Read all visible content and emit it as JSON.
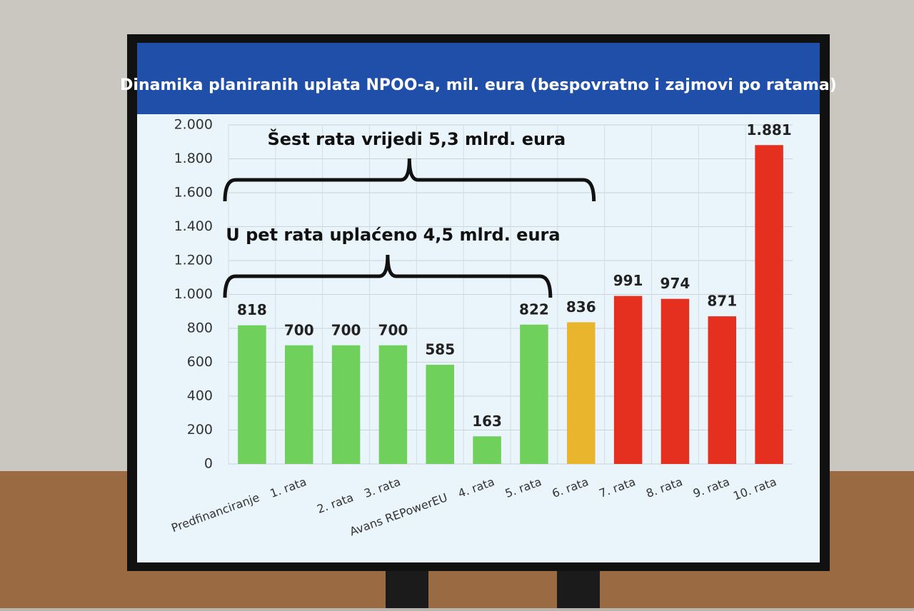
{
  "chart_data": {
    "type": "bar",
    "title": "Dinamika planiranih uplata NPOO-a, mil. eura (bespovratno i zajmovi po ratama)",
    "categories": [
      "Predfinanciranje",
      "1. rata",
      "2. rata",
      "3. rata",
      "Avans REPowerEU",
      "4. rata",
      "5. rata",
      "6. rata",
      "7. rata",
      "8. rata",
      "9. rata",
      "10. rata"
    ],
    "values": [
      818,
      700,
      700,
      700,
      585,
      163,
      822,
      836,
      991,
      974,
      871,
      1881
    ],
    "value_labels": [
      "818",
      "700",
      "700",
      "700",
      "585",
      "163",
      "822",
      "836",
      "991",
      "974",
      "871",
      "1.881"
    ],
    "colors": [
      "#6fd05c",
      "#6fd05c",
      "#6fd05c",
      "#6fd05c",
      "#6fd05c",
      "#6fd05c",
      "#6fd05c",
      "#e9b52c",
      "#e5301f",
      "#e5301f",
      "#e5301f",
      "#e5301f"
    ],
    "ylim": [
      0,
      2000
    ],
    "yticks": [
      0,
      200,
      400,
      600,
      800,
      {
        "value": 1000,
        "label": "1.000"
      },
      {
        "value": 1200,
        "label": "1.200"
      },
      {
        "value": 1400,
        "label": "1.400"
      },
      {
        "value": 1600,
        "label": "1.600"
      },
      {
        "value": 1800,
        "label": "1.800"
      },
      {
        "value": 2000,
        "label": "2.000"
      }
    ],
    "grid": true,
    "annotations": [
      "Šest rata vrijedi 5,3 mlrd. eura",
      "U pet rata uplaćeno 4,5 mlrd. eura"
    ]
  }
}
